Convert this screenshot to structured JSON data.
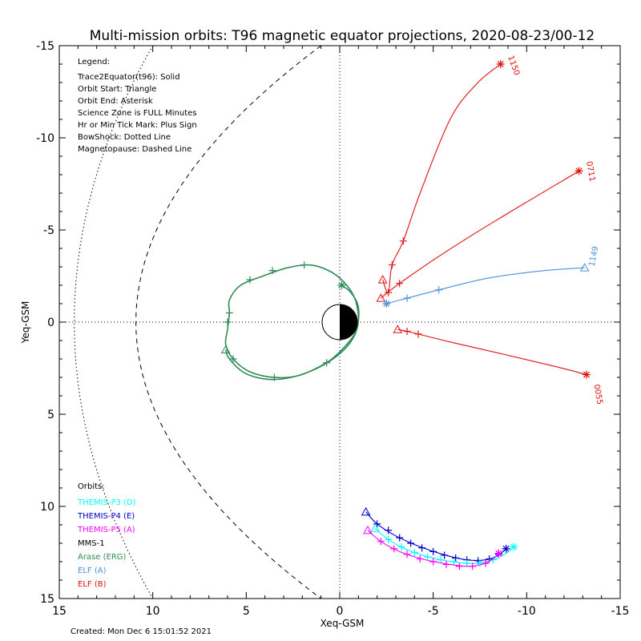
{
  "chart_data": {
    "type": "line",
    "title": "Multi-mission orbits: T96 magnetic equator projections, 2020-08-23/00-12",
    "xlabel": "Xeq-GSM",
    "ylabel": "Yeq-GSM",
    "xlim": [
      15,
      -15
    ],
    "ylim": [
      15,
      -15
    ],
    "xticks": [
      {
        "value": 15,
        "label": "15"
      },
      {
        "value": 10,
        "label": "10"
      },
      {
        "value": 5,
        "label": "5"
      },
      {
        "value": 0,
        "label": "0"
      },
      {
        "value": -5,
        "label": "-5"
      },
      {
        "value": -10,
        "label": "-10"
      },
      {
        "value": -15,
        "label": "-15"
      }
    ],
    "yticks": [
      {
        "value": -15,
        "label": "-15"
      },
      {
        "value": -10,
        "label": "-10"
      },
      {
        "value": -5,
        "label": "-5"
      },
      {
        "value": 0,
        "label": "0"
      },
      {
        "value": 5,
        "label": "5"
      },
      {
        "value": 10,
        "label": "10"
      },
      {
        "value": 15,
        "label": "15"
      }
    ],
    "legend": {
      "heading": "Legend:",
      "lines": [
        "Trace2Equator(t96): Solid",
        "Orbit Start: Triangle",
        "Orbit End: Asterisk",
        "Science Zone is FULL Minutes",
        "Hr or Min Tick Mark: Plus Sign",
        "BowShock: Dotted Line",
        "Magnetopause: Dashed Line"
      ]
    },
    "orbits_heading": "Orbits:",
    "orbits_legend": [
      {
        "label": "THEMIS-P3 (D)",
        "color": "#00ffff"
      },
      {
        "label": "THEMIS-P4 (E)",
        "color": "#0000c8"
      },
      {
        "label": "THEMIS-P5 (A)",
        "color": "#ff00ff"
      },
      {
        "label": "MMS-1",
        "color": "#000000"
      },
      {
        "label": "Arase (ERG)",
        "color": "#2e8b57"
      },
      {
        "label": "ELF (A)",
        "color": "#4a90d9"
      },
      {
        "label": "ELF (B)",
        "color": "#e01010"
      }
    ],
    "footer": "Created: Mon Dec  6 15:01:52 2021",
    "boundaries": {
      "bowshock_nose": 14.2,
      "bowshock_edge_y": 15.0,
      "magnetopause_nose": 10.9,
      "magnetopause_edge_y": 15.0
    },
    "series": [
      {
        "name": "ELF (B)",
        "color": "#e01010",
        "points": [
          [
            -2.3,
            -2.3
          ],
          [
            -2.6,
            -1.6
          ],
          [
            -2.8,
            -3.1
          ],
          [
            -3.4,
            -4.4
          ],
          [
            -4.3,
            -7.0
          ],
          [
            -5.9,
            -11.0
          ],
          [
            -7.3,
            -12.9
          ],
          [
            -8.6,
            -14.0
          ]
        ],
        "start": [
          -2.3,
          -2.3
        ],
        "end": [
          -8.6,
          -14.0
        ],
        "ticks": [
          [
            -2.6,
            -1.6
          ],
          [
            -2.8,
            -3.1
          ],
          [
            -3.4,
            -4.4
          ]
        ],
        "time_label": "1150",
        "label_at": [
          -9.0,
          -14.4
        ],
        "label_rotate": 70
      },
      {
        "name": "ELF (B)",
        "color": "#e01010",
        "points": [
          [
            -2.2,
            -1.3
          ],
          [
            -3.2,
            -2.1
          ],
          [
            -5.5,
            -3.7
          ],
          [
            -8.5,
            -5.6
          ],
          [
            -12.8,
            -8.2
          ]
        ],
        "start": [
          -2.2,
          -1.3
        ],
        "end": [
          -12.8,
          -8.2
        ],
        "ticks": [
          [
            -3.2,
            -2.1
          ]
        ],
        "time_label": "0711",
        "label_at": [
          -13.2,
          -8.7
        ],
        "label_rotate": 80
      },
      {
        "name": "ELF (A)",
        "color": "#4a90d9",
        "points": [
          [
            -2.5,
            -1.0
          ],
          [
            -3.6,
            -1.3
          ],
          [
            -5.3,
            -1.75
          ],
          [
            -8.0,
            -2.4
          ],
          [
            -11.0,
            -2.8
          ],
          [
            -13.1,
            -2.95
          ]
        ],
        "start": [
          -13.1,
          -2.95
        ],
        "end": [
          -2.5,
          -1.0
        ],
        "ticks": [
          [
            -3.6,
            -1.3
          ],
          [
            -5.3,
            -1.75
          ]
        ],
        "time_label": "1149",
        "label_at": [
          -13.6,
          -3.0
        ],
        "label_rotate": -78
      },
      {
        "name": "ELF (B)",
        "color": "#e01010",
        "points": [
          [
            -3.1,
            0.4
          ],
          [
            -3.6,
            0.5
          ],
          [
            -4.2,
            0.65
          ],
          [
            -6.0,
            1.1
          ],
          [
            -9.0,
            1.8
          ],
          [
            -11.5,
            2.4
          ],
          [
            -13.2,
            2.85
          ]
        ],
        "start": [
          -3.1,
          0.4
        ],
        "end": [
          -13.2,
          2.85
        ],
        "ticks": [
          [
            -3.6,
            0.5
          ],
          [
            -4.2,
            0.65
          ]
        ],
        "time_label": "0055",
        "label_at": [
          -13.6,
          3.4
        ],
        "label_rotate": 80
      },
      {
        "name": "Arase (ERG)",
        "color": "#2e8b57",
        "points": [
          [
            -0.1,
            -2.0
          ],
          [
            -0.6,
            -1.6
          ],
          [
            -1.0,
            -0.8
          ],
          [
            -0.9,
            0.4
          ],
          [
            -0.3,
            1.3
          ],
          [
            0.7,
            2.2
          ],
          [
            2.2,
            2.9
          ],
          [
            3.5,
            3.0
          ],
          [
            4.8,
            2.7
          ],
          [
            5.7,
            2.0
          ],
          [
            6.1,
            1.2
          ],
          [
            6.0,
            0.4
          ],
          [
            5.9,
            -0.5
          ],
          [
            5.9,
            -1.2
          ],
          [
            5.3,
            -2.0
          ],
          [
            4.1,
            -2.5
          ],
          [
            2.8,
            -2.95
          ],
          [
            1.6,
            -3.1
          ],
          [
            0.6,
            -2.8
          ],
          [
            -0.2,
            -2.2
          ],
          [
            -0.8,
            -1.3
          ],
          [
            -1.0,
            -0.1
          ],
          [
            -0.7,
            0.9
          ],
          [
            0.1,
            1.8
          ],
          [
            1.2,
            2.5
          ],
          [
            2.6,
            3.0
          ],
          [
            3.9,
            3.1
          ],
          [
            5.1,
            2.75
          ],
          [
            5.9,
            2.0
          ],
          [
            6.1,
            1.5
          ]
        ],
        "start": [
          6.1,
          1.5
        ],
        "end": [
          -0.1,
          -2.0
        ],
        "ticks": [
          [
            0.7,
            2.2
          ],
          [
            3.5,
            3.0
          ],
          [
            5.7,
            2.0
          ],
          [
            5.9,
            -0.5
          ],
          [
            4.8,
            -2.3
          ],
          [
            3.6,
            -2.8
          ],
          [
            1.9,
            -3.1
          ],
          [
            6.0,
            0.0
          ]
        ],
        "time_label": "",
        "label_at": [
          0,
          0
        ],
        "label_rotate": 0
      },
      {
        "name": "THEMIS-P4 (E)",
        "color": "#0000c8",
        "points": [
          [
            -1.4,
            10.3
          ],
          [
            -2.0,
            10.95
          ],
          [
            -3.0,
            11.6
          ],
          [
            -4.2,
            12.15
          ],
          [
            -5.5,
            12.6
          ],
          [
            -6.8,
            12.9
          ],
          [
            -7.8,
            12.9
          ],
          [
            -8.4,
            12.7
          ],
          [
            -8.9,
            12.3
          ]
        ],
        "start": [
          -1.4,
          10.3
        ],
        "end": [
          -8.9,
          12.3
        ],
        "ticks": [
          [
            -2.0,
            10.95
          ],
          [
            -2.6,
            11.3
          ],
          [
            -3.2,
            11.7
          ],
          [
            -3.8,
            12.0
          ],
          [
            -4.4,
            12.25
          ],
          [
            -5.0,
            12.45
          ],
          [
            -5.6,
            12.65
          ],
          [
            -6.2,
            12.8
          ],
          [
            -6.8,
            12.9
          ],
          [
            -7.4,
            12.95
          ],
          [
            -8.0,
            12.85
          ],
          [
            -8.5,
            12.6
          ]
        ],
        "time_label": "",
        "label_at": [
          0,
          0
        ],
        "label_rotate": 0
      },
      {
        "name": "THEMIS-P3 (D)",
        "color": "#00ffff",
        "points": [
          [
            -1.9,
            11.2
          ],
          [
            -2.6,
            11.8
          ],
          [
            -3.6,
            12.35
          ],
          [
            -4.8,
            12.75
          ],
          [
            -6.0,
            13.0
          ],
          [
            -7.2,
            13.1
          ],
          [
            -8.2,
            12.9
          ],
          [
            -8.9,
            12.55
          ],
          [
            -9.3,
            12.2
          ]
        ],
        "start": [
          -1.9,
          11.2
        ],
        "end": [
          -9.3,
          12.2
        ],
        "ticks": [
          [
            -2.6,
            11.8
          ],
          [
            -3.3,
            12.2
          ],
          [
            -4.0,
            12.5
          ],
          [
            -4.7,
            12.75
          ],
          [
            -5.4,
            12.9
          ],
          [
            -6.1,
            13.0
          ],
          [
            -6.8,
            13.1
          ],
          [
            -7.5,
            13.1
          ],
          [
            -8.2,
            12.9
          ]
        ],
        "time_label": "",
        "label_at": [
          0,
          0
        ],
        "label_rotate": 0
      },
      {
        "name": "THEMIS-P5 (A)",
        "color": "#ff00ff",
        "points": [
          [
            -1.5,
            11.3
          ],
          [
            -2.2,
            11.9
          ],
          [
            -3.2,
            12.45
          ],
          [
            -4.4,
            12.85
          ],
          [
            -5.6,
            13.1
          ],
          [
            -6.8,
            13.25
          ],
          [
            -7.6,
            13.15
          ],
          [
            -8.2,
            12.85
          ],
          [
            -8.5,
            12.55
          ]
        ],
        "start": [
          -1.5,
          11.3
        ],
        "end": [
          -8.5,
          12.55
        ],
        "ticks": [
          [
            -2.2,
            11.9
          ],
          [
            -2.9,
            12.3
          ],
          [
            -3.6,
            12.6
          ],
          [
            -4.3,
            12.85
          ],
          [
            -5.0,
            13.0
          ],
          [
            -5.7,
            13.15
          ],
          [
            -6.4,
            13.25
          ],
          [
            -7.1,
            13.25
          ],
          [
            -7.8,
            13.1
          ]
        ],
        "time_label": "",
        "label_at": [
          0,
          0
        ],
        "label_rotate": 0
      }
    ]
  }
}
